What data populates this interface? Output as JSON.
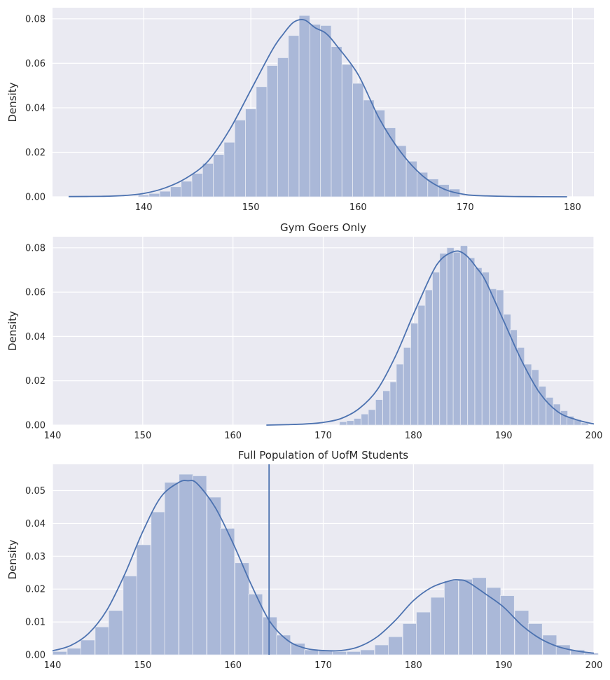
{
  "chart_data": [
    {
      "type": "bar",
      "title": "",
      "xlabel": "",
      "ylabel": "Density",
      "xlim": [
        131.5,
        182
      ],
      "ylim": [
        0,
        0.085
      ],
      "xticks": [
        140,
        150,
        160,
        170,
        180
      ],
      "yticks": [
        0.0,
        0.02,
        0.04,
        0.06,
        0.08
      ],
      "xtick_labels": [
        "140",
        "150",
        "160",
        "170",
        "180"
      ],
      "ytick_labels": [
        "0.00",
        "0.02",
        "0.04",
        "0.06",
        "0.08"
      ],
      "grid": true,
      "bin_width": 1.0,
      "bins": {
        "x": [
          140,
          141,
          142,
          143,
          144,
          145,
          146,
          147,
          148,
          149,
          150,
          151,
          152,
          153,
          154,
          155,
          156,
          157,
          158,
          159,
          160,
          161,
          162,
          163,
          164,
          165,
          166,
          167,
          168,
          169
        ],
        "values": [
          0.0008,
          0.0015,
          0.0025,
          0.0045,
          0.007,
          0.0105,
          0.015,
          0.019,
          0.0245,
          0.0345,
          0.0395,
          0.0495,
          0.059,
          0.0625,
          0.0725,
          0.0815,
          0.0775,
          0.077,
          0.0675,
          0.0595,
          0.051,
          0.0435,
          0.039,
          0.031,
          0.023,
          0.016,
          0.011,
          0.008,
          0.0055,
          0.0035
        ]
      },
      "kde": {
        "x": [
          133,
          136,
          138,
          140,
          142,
          144,
          146,
          148,
          150,
          152,
          153,
          154,
          155,
          156,
          157,
          158,
          160,
          162,
          164,
          166,
          168,
          170,
          172,
          175,
          179.5
        ],
        "values": [
          0.0001,
          0.0002,
          0.0005,
          0.0015,
          0.004,
          0.0085,
          0.016,
          0.03,
          0.048,
          0.066,
          0.073,
          0.0785,
          0.0795,
          0.076,
          0.0735,
          0.068,
          0.055,
          0.035,
          0.02,
          0.0095,
          0.0035,
          0.001,
          0.0004,
          0.0001,
          0.0
        ]
      }
    },
    {
      "type": "bar",
      "title": "Gym Goers Only",
      "xlabel": "",
      "ylabel": "Density",
      "xlim": [
        140,
        200
      ],
      "ylim": [
        0,
        0.085
      ],
      "xticks": [
        140,
        150,
        160,
        170,
        180,
        190,
        200
      ],
      "yticks": [
        0.0,
        0.02,
        0.04,
        0.06,
        0.08
      ],
      "xtick_labels": [
        "140",
        "150",
        "160",
        "170",
        "180",
        "190",
        "200"
      ],
      "ytick_labels": [
        "0.00",
        "0.02",
        "0.04",
        "0.06",
        "0.08"
      ],
      "grid": true,
      "bin_width": 0.79,
      "bins": {
        "x": [
          172.2,
          173.0,
          173.8,
          174.6,
          175.4,
          176.2,
          177.0,
          177.8,
          178.5,
          179.3,
          180.1,
          180.9,
          181.7,
          182.5,
          183.3,
          184.1,
          184.8,
          185.6,
          186.4,
          187.2,
          188.0,
          188.8,
          189.6,
          190.4,
          191.1,
          191.9,
          192.7,
          193.5,
          194.3,
          195.1,
          195.9,
          196.7,
          197.4,
          198.2,
          199.0
        ],
        "values": [
          0.0015,
          0.002,
          0.003,
          0.005,
          0.007,
          0.0115,
          0.0155,
          0.0195,
          0.0275,
          0.035,
          0.046,
          0.054,
          0.061,
          0.069,
          0.0775,
          0.08,
          0.078,
          0.081,
          0.0755,
          0.071,
          0.069,
          0.0615,
          0.061,
          0.05,
          0.043,
          0.035,
          0.0275,
          0.025,
          0.0175,
          0.0125,
          0.0095,
          0.0065,
          0.004,
          0.0025,
          0.001
        ]
      },
      "kde": {
        "x": [
          163.7,
          166,
          168,
          170,
          172,
          174,
          176,
          178,
          180,
          182,
          183,
          184,
          185,
          186,
          187,
          188,
          190,
          192,
          194,
          196,
          198,
          200
        ],
        "values": [
          0.0,
          0.0002,
          0.0005,
          0.0012,
          0.003,
          0.0075,
          0.016,
          0.031,
          0.05,
          0.068,
          0.0745,
          0.0775,
          0.0785,
          0.076,
          0.071,
          0.065,
          0.047,
          0.029,
          0.0145,
          0.006,
          0.0025,
          0.0005
        ]
      }
    },
    {
      "type": "bar",
      "title": "Full Population of UofM Students",
      "xlabel": "",
      "ylabel": "Density",
      "xlim": [
        140,
        200
      ],
      "ylim": [
        0,
        0.058
      ],
      "xticks": [
        140,
        150,
        160,
        170,
        180,
        190,
        200
      ],
      "yticks": [
        0.0,
        0.01,
        0.02,
        0.03,
        0.04,
        0.05
      ],
      "xtick_labels": [
        "140",
        "150",
        "160",
        "170",
        "180",
        "190",
        "200"
      ],
      "ytick_labels": [
        "0.00",
        "0.01",
        "0.02",
        "0.03",
        "0.04",
        "0.05"
      ],
      "grid": true,
      "vline_x": 164,
      "bin_width": 1.55,
      "bins": {
        "x": [
          140.8,
          142.4,
          143.9,
          145.5,
          147.0,
          148.6,
          150.1,
          151.7,
          153.2,
          154.8,
          156.3,
          157.9,
          159.4,
          161.0,
          162.5,
          164.1,
          165.6,
          167.2,
          168.7,
          170.3,
          171.8,
          173.4,
          174.9,
          176.5,
          178.0,
          179.6,
          181.1,
          182.7,
          184.2,
          185.8,
          187.3,
          188.9,
          190.4,
          192.0,
          193.5,
          195.1,
          196.6,
          198.2,
          199.7
        ],
        "values": [
          0.001,
          0.002,
          0.0045,
          0.0085,
          0.0135,
          0.024,
          0.0335,
          0.0435,
          0.0525,
          0.055,
          0.0545,
          0.048,
          0.0385,
          0.028,
          0.0185,
          0.0115,
          0.006,
          0.0035,
          0.0015,
          0.0015,
          0.001,
          0.001,
          0.0015,
          0.003,
          0.0055,
          0.0095,
          0.013,
          0.0175,
          0.0225,
          0.023,
          0.0235,
          0.0205,
          0.018,
          0.0135,
          0.0095,
          0.006,
          0.003,
          0.0015,
          0.0005
        ]
      },
      "kde": {
        "x": [
          140,
          142,
          144,
          146,
          148,
          150,
          152,
          154,
          155,
          156,
          158,
          160,
          162,
          164,
          166,
          168,
          170,
          172,
          174,
          176,
          178,
          180,
          182,
          184,
          185,
          186,
          188,
          190,
          192,
          194,
          196,
          198,
          200
        ],
        "values": [
          0.0012,
          0.0028,
          0.0065,
          0.0135,
          0.0245,
          0.0375,
          0.048,
          0.0525,
          0.053,
          0.0522,
          0.045,
          0.034,
          0.0215,
          0.0105,
          0.0045,
          0.002,
          0.0013,
          0.0013,
          0.0025,
          0.0055,
          0.0105,
          0.0165,
          0.0205,
          0.0225,
          0.0228,
          0.0222,
          0.0185,
          0.0145,
          0.009,
          0.005,
          0.0025,
          0.0012,
          0.0005
        ]
      }
    }
  ],
  "colors": {
    "bar_fill": "#aab8d8",
    "bar_edge": "#e6e9f2",
    "kde_line": "#4c72b0",
    "vline": "#4c72b0",
    "axes_bg": "#eaeaf2",
    "grid": "#ffffff"
  }
}
